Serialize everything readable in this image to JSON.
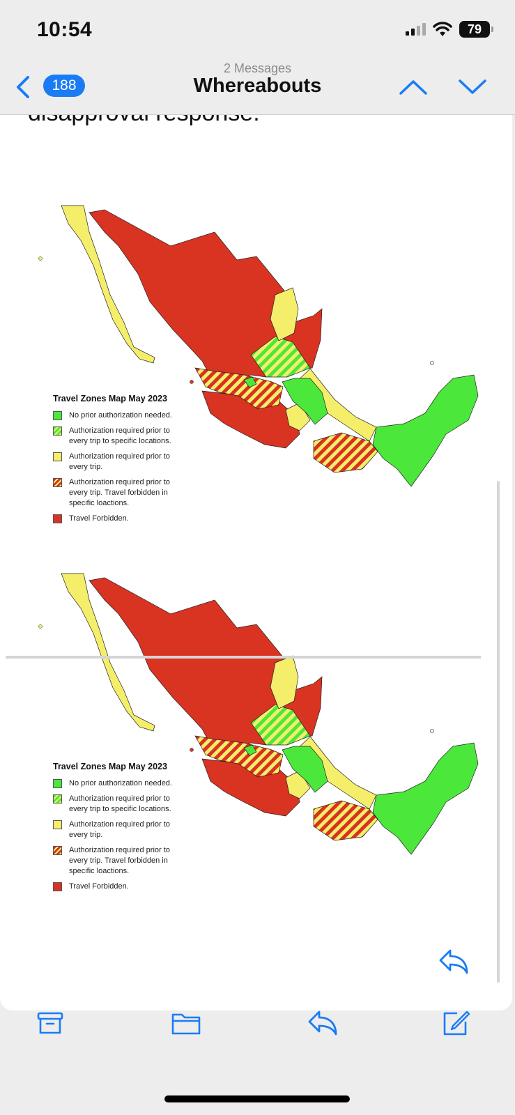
{
  "status_bar": {
    "time": "10:54",
    "battery": "79",
    "icons": [
      "cellular-signal-icon",
      "wifi-icon",
      "battery-icon"
    ]
  },
  "nav": {
    "back_count": "188",
    "message_count": "2 Messages",
    "title": "Whereabouts",
    "icons": [
      "chevron-left-icon",
      "chevron-up-icon",
      "chevron-down-icon"
    ]
  },
  "email": {
    "body_text": "disapproval response.",
    "maps": [
      {
        "title": "Travel Zones Map May 2023",
        "legend": [
          {
            "label": "No prior authorization needed.",
            "color": "#4be83b"
          },
          {
            "label": "Authorization required prior to every trip to specific locations.",
            "color": "#4be83b"
          },
          {
            "label": "Authorization required prior to every trip.",
            "color": "#f5ee6a"
          },
          {
            "label": "Authorization required prior to every trip. Travel forbidden in specific loactions.",
            "color": "#d9311f"
          },
          {
            "label": "Travel Forbidden.",
            "color": "#d93322"
          }
        ]
      },
      {
        "title": "Travel Zones Map May 2023",
        "legend": [
          {
            "label": "No prior authorization needed.",
            "color": "#4be83b"
          },
          {
            "label": "Authorization required prior to every trip to specific locations.",
            "color": "#4be83b"
          },
          {
            "label": "Authorization required prior to every trip.",
            "color": "#f5ee6a"
          },
          {
            "label": "Authorization required prior to every trip. Travel forbidden in specific loactions.",
            "color": "#d9311f"
          },
          {
            "label": "Travel Forbidden.",
            "color": "#d93322"
          }
        ]
      }
    ]
  },
  "toolbar": {
    "icons": [
      "archive-icon",
      "folder-icon",
      "reply-icon",
      "compose-icon"
    ]
  },
  "colors": {
    "accent": "#1a7cf5",
    "red": "#d93322",
    "yellow": "#f5ee6a",
    "green": "#4be83b"
  }
}
